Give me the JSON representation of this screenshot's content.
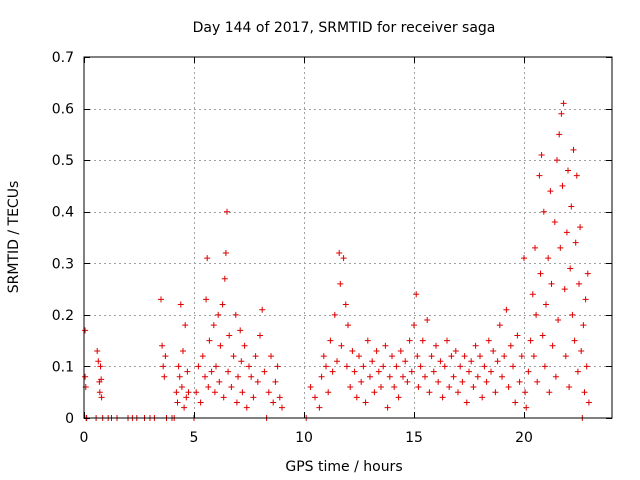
{
  "chart_data": {
    "type": "scatter",
    "title": "Day 144 of 2017, SRMTID for receiver saga",
    "xlabel": "GPS time / hours",
    "ylabel": "SRMTID / TECUs",
    "xlim": [
      0,
      24
    ],
    "ylim": [
      0,
      0.7
    ],
    "xticks": [
      0,
      5,
      10,
      15,
      20
    ],
    "xtick_labels": [
      "0",
      "5",
      "10",
      "15",
      "20"
    ],
    "yticks": [
      0,
      0.1,
      0.2,
      0.3,
      0.4,
      0.5,
      0.6,
      0.7
    ],
    "ytick_labels": [
      "0",
      "0.1",
      "0.2",
      "0.3",
      "0.4",
      "0.5",
      "0.6",
      "0.7"
    ],
    "grid": true,
    "marker": "+",
    "series": [
      {
        "name": "SRMTID",
        "color": "#dd0000",
        "points": [
          [
            0.05,
            0.17
          ],
          [
            0.05,
            0.08
          ],
          [
            0.08,
            0.06
          ],
          [
            0.1,
            0.0
          ],
          [
            0.12,
            0.0
          ],
          [
            0.55,
            0.0
          ],
          [
            0.6,
            0.13
          ],
          [
            0.65,
            0.11
          ],
          [
            0.7,
            0.07
          ],
          [
            0.72,
            0.05
          ],
          [
            0.75,
            0.1
          ],
          [
            0.78,
            0.075
          ],
          [
            0.8,
            0.04
          ],
          [
            0.85,
            0.0
          ],
          [
            1.1,
            0.0
          ],
          [
            1.25,
            0.0
          ],
          [
            1.5,
            0.0
          ],
          [
            2.0,
            0.0
          ],
          [
            2.2,
            0.0
          ],
          [
            2.4,
            0.0
          ],
          [
            2.75,
            0.0
          ],
          [
            3.0,
            0.0
          ],
          [
            3.2,
            0.0
          ],
          [
            3.5,
            0.23
          ],
          [
            3.55,
            0.14
          ],
          [
            3.6,
            0.1
          ],
          [
            3.65,
            0.08
          ],
          [
            3.7,
            0.12
          ],
          [
            3.75,
            0.0
          ],
          [
            4.0,
            0.0
          ],
          [
            4.1,
            0.0
          ],
          [
            4.2,
            0.05
          ],
          [
            4.25,
            0.03
          ],
          [
            4.3,
            0.1
          ],
          [
            4.35,
            0.08
          ],
          [
            4.4,
            0.22
          ],
          [
            4.45,
            0.06
          ],
          [
            4.5,
            0.13
          ],
          [
            4.55,
            0.02
          ],
          [
            4.6,
            0.18
          ],
          [
            4.65,
            0.04
          ],
          [
            4.7,
            0.09
          ],
          [
            4.75,
            0.05
          ],
          [
            5.0,
            0.0
          ],
          [
            5.1,
            0.05
          ],
          [
            5.2,
            0.1
          ],
          [
            5.3,
            0.03
          ],
          [
            5.4,
            0.12
          ],
          [
            5.5,
            0.08
          ],
          [
            5.55,
            0.23
          ],
          [
            5.6,
            0.31
          ],
          [
            5.65,
            0.06
          ],
          [
            5.7,
            0.15
          ],
          [
            5.8,
            0.09
          ],
          [
            5.9,
            0.18
          ],
          [
            5.95,
            0.05
          ],
          [
            6.0,
            0.1
          ],
          [
            6.1,
            0.2
          ],
          [
            6.15,
            0.07
          ],
          [
            6.2,
            0.14
          ],
          [
            6.3,
            0.22
          ],
          [
            6.35,
            0.04
          ],
          [
            6.4,
            0.27
          ],
          [
            6.45,
            0.32
          ],
          [
            6.5,
            0.4
          ],
          [
            6.55,
            0.09
          ],
          [
            6.6,
            0.16
          ],
          [
            6.7,
            0.06
          ],
          [
            6.8,
            0.12
          ],
          [
            6.9,
            0.2
          ],
          [
            6.95,
            0.03
          ],
          [
            7.0,
            0.08
          ],
          [
            7.1,
            0.17
          ],
          [
            7.15,
            0.11
          ],
          [
            7.2,
            0.05
          ],
          [
            7.3,
            0.14
          ],
          [
            7.4,
            0.02
          ],
          [
            7.5,
            0.1
          ],
          [
            7.6,
            0.08
          ],
          [
            7.7,
            0.04
          ],
          [
            7.8,
            0.12
          ],
          [
            7.9,
            0.07
          ],
          [
            8.0,
            0.16
          ],
          [
            8.1,
            0.21
          ],
          [
            8.2,
            0.09
          ],
          [
            8.3,
            0.0
          ],
          [
            8.4,
            0.05
          ],
          [
            8.5,
            0.12
          ],
          [
            8.6,
            0.03
          ],
          [
            8.7,
            0.07
          ],
          [
            8.8,
            0.1
          ],
          [
            8.9,
            0.04
          ],
          [
            9.0,
            0.02
          ],
          [
            10.1,
            0.0
          ],
          [
            10.3,
            0.06
          ],
          [
            10.5,
            0.04
          ],
          [
            10.7,
            0.02
          ],
          [
            10.8,
            0.08
          ],
          [
            10.9,
            0.12
          ],
          [
            11.0,
            0.1
          ],
          [
            11.1,
            0.05
          ],
          [
            11.2,
            0.15
          ],
          [
            11.3,
            0.09
          ],
          [
            11.4,
            0.2
          ],
          [
            11.5,
            0.11
          ],
          [
            11.6,
            0.32
          ],
          [
            11.65,
            0.26
          ],
          [
            11.7,
            0.14
          ],
          [
            11.8,
            0.31
          ],
          [
            11.9,
            0.22
          ],
          [
            11.95,
            0.1
          ],
          [
            12.0,
            0.18
          ],
          [
            12.1,
            0.06
          ],
          [
            12.2,
            0.13
          ],
          [
            12.3,
            0.09
          ],
          [
            12.4,
            0.04
          ],
          [
            12.5,
            0.12
          ],
          [
            12.6,
            0.07
          ],
          [
            12.7,
            0.1
          ],
          [
            12.8,
            0.03
          ],
          [
            12.9,
            0.15
          ],
          [
            13.0,
            0.08
          ],
          [
            13.1,
            0.11
          ],
          [
            13.2,
            0.05
          ],
          [
            13.3,
            0.13
          ],
          [
            13.4,
            0.09
          ],
          [
            13.5,
            0.06
          ],
          [
            13.6,
            0.1
          ],
          [
            13.7,
            0.14
          ],
          [
            13.8,
            0.02
          ],
          [
            13.9,
            0.08
          ],
          [
            14.0,
            0.12
          ],
          [
            14.1,
            0.06
          ],
          [
            14.2,
            0.1
          ],
          [
            14.3,
            0.04
          ],
          [
            14.4,
            0.13
          ],
          [
            14.5,
            0.08
          ],
          [
            14.6,
            0.11
          ],
          [
            14.7,
            0.07
          ],
          [
            14.8,
            0.15
          ],
          [
            14.9,
            0.09
          ],
          [
            15.0,
            0.18
          ],
          [
            15.1,
            0.24
          ],
          [
            15.15,
            0.12
          ],
          [
            15.2,
            0.06
          ],
          [
            15.3,
            0.1
          ],
          [
            15.4,
            0.15
          ],
          [
            15.5,
            0.08
          ],
          [
            15.6,
            0.19
          ],
          [
            15.7,
            0.05
          ],
          [
            15.8,
            0.12
          ],
          [
            15.9,
            0.09
          ],
          [
            16.0,
            0.14
          ],
          [
            16.1,
            0.07
          ],
          [
            16.2,
            0.11
          ],
          [
            16.3,
            0.04
          ],
          [
            16.4,
            0.1
          ],
          [
            16.5,
            0.15
          ],
          [
            16.6,
            0.06
          ],
          [
            16.7,
            0.12
          ],
          [
            16.8,
            0.08
          ],
          [
            16.9,
            0.13
          ],
          [
            17.0,
            0.05
          ],
          [
            17.1,
            0.1
          ],
          [
            17.2,
            0.07
          ],
          [
            17.3,
            0.12
          ],
          [
            17.4,
            0.03
          ],
          [
            17.5,
            0.09
          ],
          [
            17.6,
            0.11
          ],
          [
            17.7,
            0.06
          ],
          [
            17.8,
            0.14
          ],
          [
            17.9,
            0.08
          ],
          [
            18.0,
            0.12
          ],
          [
            18.1,
            0.04
          ],
          [
            18.2,
            0.1
          ],
          [
            18.3,
            0.07
          ],
          [
            18.4,
            0.15
          ],
          [
            18.5,
            0.09
          ],
          [
            18.6,
            0.13
          ],
          [
            18.7,
            0.05
          ],
          [
            18.8,
            0.11
          ],
          [
            18.9,
            0.18
          ],
          [
            19.0,
            0.08
          ],
          [
            19.1,
            0.12
          ],
          [
            19.2,
            0.21
          ],
          [
            19.3,
            0.06
          ],
          [
            19.4,
            0.14
          ],
          [
            19.5,
            0.1
          ],
          [
            19.6,
            0.03
          ],
          [
            19.7,
            0.16
          ],
          [
            19.8,
            0.07
          ],
          [
            19.9,
            0.12
          ],
          [
            20.0,
            0.31
          ],
          [
            20.05,
            0.05
          ],
          [
            20.1,
            0.02
          ],
          [
            20.2,
            0.09
          ],
          [
            20.3,
            0.15
          ],
          [
            20.4,
            0.24
          ],
          [
            20.45,
            0.12
          ],
          [
            20.5,
            0.33
          ],
          [
            20.55,
            0.2
          ],
          [
            20.6,
            0.07
          ],
          [
            20.7,
            0.47
          ],
          [
            20.75,
            0.28
          ],
          [
            20.8,
            0.51
          ],
          [
            20.85,
            0.16
          ],
          [
            20.9,
            0.4
          ],
          [
            20.95,
            0.1
          ],
          [
            21.0,
            0.22
          ],
          [
            21.1,
            0.31
          ],
          [
            21.15,
            0.05
          ],
          [
            21.2,
            0.44
          ],
          [
            21.25,
            0.26
          ],
          [
            21.3,
            0.14
          ],
          [
            21.4,
            0.38
          ],
          [
            21.45,
            0.08
          ],
          [
            21.5,
            0.5
          ],
          [
            21.55,
            0.19
          ],
          [
            21.6,
            0.55
          ],
          [
            21.65,
            0.33
          ],
          [
            21.7,
            0.59
          ],
          [
            21.75,
            0.45
          ],
          [
            21.8,
            0.61
          ],
          [
            21.85,
            0.25
          ],
          [
            21.9,
            0.12
          ],
          [
            21.95,
            0.36
          ],
          [
            22.0,
            0.48
          ],
          [
            22.05,
            0.06
          ],
          [
            22.1,
            0.29
          ],
          [
            22.15,
            0.41
          ],
          [
            22.2,
            0.2
          ],
          [
            22.25,
            0.52
          ],
          [
            22.3,
            0.15
          ],
          [
            22.35,
            0.34
          ],
          [
            22.4,
            0.47
          ],
          [
            22.45,
            0.09
          ],
          [
            22.5,
            0.26
          ],
          [
            22.55,
            0.37
          ],
          [
            22.6,
            0.13
          ],
          [
            22.65,
            0.0
          ],
          [
            22.7,
            0.18
          ],
          [
            22.75,
            0.05
          ],
          [
            22.8,
            0.23
          ],
          [
            22.85,
            0.1
          ],
          [
            22.9,
            0.28
          ],
          [
            22.95,
            0.03
          ]
        ]
      }
    ]
  }
}
